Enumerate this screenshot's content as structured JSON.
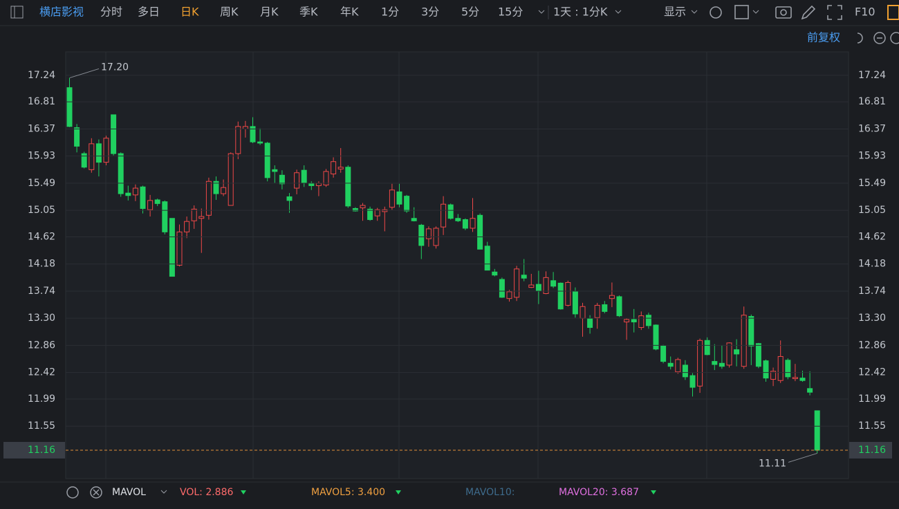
{
  "toolbar": {
    "stock_name": "横店影视",
    "tabs": [
      "分时",
      "多日",
      "日K",
      "周K",
      "月K",
      "季K",
      "年K",
      "1分",
      "3分",
      "5分",
      "15分"
    ],
    "active_tab": 2,
    "period": "1天 : 1分K",
    "display": "显示",
    "f10": "F10",
    "adjust": "前复权"
  },
  "chart_data": {
    "type": "candlestick",
    "up_color": "#f04848",
    "down_color": "#20d060",
    "ylim": [
      10.7,
      17.62
    ],
    "yticks": [
      17.24,
      16.81,
      16.37,
      15.93,
      15.49,
      15.05,
      14.62,
      14.18,
      13.74,
      {
        "value": 13.3,
        "label": "13.30"
      },
      12.86,
      12.42,
      11.99,
      11.55
    ],
    "last_price": 11.16,
    "high_label": {
      "value": 17.2,
      "label": "17.20"
    },
    "low_label": {
      "value": 11.11,
      "label": "11.11"
    },
    "open": [
      17.04,
      16.39,
      15.97,
      15.71,
      16.13,
      15.83,
      16.6,
      15.97,
      15.33,
      15.3,
      15.43,
      15.06,
      15.22,
      15.19,
      14.92,
      14.16,
      14.7,
      14.88,
      14.92,
      14.97,
      15.52,
      15.32,
      15.13,
      15.97,
      16.37,
      16.41,
      16.16,
      16.14,
      15.71,
      15.62,
      15.27,
      15.41,
      15.7,
      15.49,
      15.45,
      15.46,
      15.64,
      15.72,
      15.75,
      15.08,
      15.09,
      15.07,
      14.96,
      15.03,
      15.1,
      15.35,
      15.28,
      14.92,
      14.81,
      14.59,
      14.48,
      14.78,
      15.14,
      14.92,
      14.9,
      14.76,
      14.97,
      14.47,
      14.05,
      13.93,
      13.62,
      13.64,
      14.0,
      13.8,
      13.85,
      13.7,
      13.91,
      13.87,
      13.51,
      13.73,
      13.3,
      13.29,
      13.31,
      13.52,
      13.62,
      13.65,
      13.24,
      13.28,
      13.15,
      13.35,
      13.19,
      12.85,
      12.57,
      12.43,
      12.54,
      12.37,
      12.2,
      12.94,
      12.6,
      12.57,
      12.54,
      12.79,
      12.52,
      13.33,
      12.89,
      12.61,
      12.31,
      12.29,
      12.62,
      12.32,
      12.33,
      12.16,
      11.8
    ],
    "high": [
      17.2,
      16.45,
      16.0,
      16.22,
      16.2,
      16.26,
      16.6,
      15.99,
      15.45,
      15.47,
      15.45,
      15.3,
      15.24,
      15.21,
      14.92,
      14.82,
      14.95,
      15.13,
      15.08,
      15.58,
      15.6,
      15.55,
      15.99,
      16.49,
      16.5,
      16.56,
      16.38,
      16.16,
      15.78,
      15.7,
      15.33,
      15.71,
      15.78,
      15.52,
      15.52,
      15.72,
      15.91,
      16.06,
      15.78,
      15.1,
      15.17,
      15.11,
      15.09,
      15.11,
      15.48,
      15.48,
      15.3,
      15.1,
      14.83,
      14.79,
      14.79,
      15.28,
      15.16,
      14.99,
      14.92,
      15.25,
      15.0,
      14.54,
      14.1,
      13.96,
      13.76,
      14.15,
      14.26,
      14.02,
      14.07,
      14.06,
      14.05,
      13.88,
      13.91,
      13.8,
      13.55,
      13.35,
      13.55,
      13.58,
      13.88,
      13.67,
      13.3,
      13.45,
      13.41,
      13.39,
      13.2,
      12.87,
      12.68,
      12.66,
      12.62,
      12.41,
      12.97,
      12.99,
      12.88,
      12.86,
      12.91,
      12.96,
      13.49,
      13.36,
      12.9,
      12.63,
      12.5,
      12.94,
      12.65,
      12.56,
      12.45,
      12.44,
      11.8
    ],
    "low": [
      16.4,
      15.99,
      15.73,
      15.66,
      15.6,
      15.78,
      15.94,
      15.27,
      15.21,
      15.2,
      15.0,
      14.95,
      15.12,
      14.66,
      13.98,
      14.14,
      14.6,
      14.75,
      14.36,
      14.9,
      15.22,
      15.28,
      15.13,
      15.88,
      16.23,
      16.14,
      16.11,
      15.52,
      15.49,
      15.39,
      15.01,
      15.31,
      15.43,
      15.38,
      15.28,
      15.43,
      15.58,
      15.66,
      15.09,
      15.03,
      14.88,
      14.88,
      14.88,
      14.71,
      15.06,
      15.1,
      15.01,
      14.87,
      14.26,
      14.46,
      14.43,
      14.65,
      14.9,
      14.86,
      14.73,
      14.7,
      14.42,
      14.08,
      13.98,
      13.63,
      13.57,
      13.58,
      13.9,
      13.79,
      13.53,
      13.69,
      13.79,
      13.44,
      13.49,
      13.31,
      13.0,
      13.05,
      13.13,
      13.38,
      13.48,
      13.32,
      12.95,
      13.07,
      13.11,
      13.13,
      12.78,
      12.57,
      12.47,
      12.4,
      12.3,
      12.03,
      12.09,
      12.7,
      12.46,
      12.48,
      12.5,
      12.52,
      12.48,
      12.54,
      12.49,
      12.27,
      12.2,
      12.25,
      12.31,
      12.28,
      12.27,
      12.05,
      11.11
    ],
    "close": [
      16.41,
      16.09,
      15.75,
      16.13,
      15.83,
      16.22,
      15.97,
      15.32,
      15.29,
      15.41,
      15.08,
      15.21,
      15.16,
      14.7,
      13.98,
      14.7,
      14.87,
      15.07,
      14.95,
      15.52,
      15.32,
      15.42,
      15.97,
      16.41,
      16.41,
      16.16,
      16.14,
      15.58,
      15.68,
      15.48,
      15.21,
      15.66,
      15.5,
      15.45,
      15.49,
      15.68,
      15.84,
      15.75,
      15.12,
      15.04,
      15.13,
      14.9,
      15.06,
      15.06,
      15.38,
      15.15,
      15.04,
      14.88,
      14.48,
      14.75,
      14.76,
      15.15,
      14.92,
      14.88,
      14.76,
      14.92,
      14.42,
      14.08,
      14.0,
      13.64,
      13.73,
      14.1,
      13.95,
      13.84,
      13.75,
      13.96,
      13.82,
      13.45,
      13.88,
      13.37,
      13.49,
      13.15,
      13.51,
      13.41,
      13.67,
      13.34,
      13.28,
      13.24,
      13.34,
      13.18,
      12.8,
      12.6,
      12.52,
      12.63,
      12.35,
      12.18,
      12.94,
      12.71,
      12.55,
      12.52,
      12.9,
      12.72,
      13.35,
      12.85,
      12.52,
      12.33,
      12.44,
      12.68,
      12.35,
      12.34,
      12.29,
      12.1,
      11.16
    ]
  },
  "indicator": {
    "name": "MAVOL",
    "vol": "VOL: 2.886",
    "mavol5": "MAVOL5: 3.400",
    "mavol10": "MAVOL10:",
    "mavol20": "MAVOL20: 3.687"
  }
}
